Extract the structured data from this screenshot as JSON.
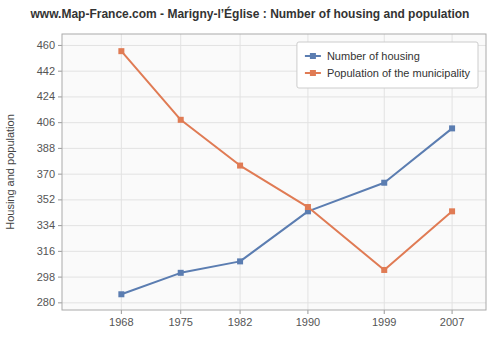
{
  "chart_data": {
    "type": "line",
    "title": "www.Map-France.com - Marigny-l’Église : Number of housing and population",
    "y_label": "Housing and population",
    "x": [
      1968,
      1975,
      1982,
      1990,
      1999,
      2007
    ],
    "xlim": [
      1961,
      2011
    ],
    "xticks": [
      1968,
      1975,
      1982,
      1990,
      1999,
      2007
    ],
    "ylim": [
      275,
      468
    ],
    "yticks": [
      280,
      298,
      316,
      334,
      352,
      370,
      388,
      406,
      424,
      442,
      460
    ],
    "series": [
      {
        "name": "Number of housing",
        "color": "#5b7db1",
        "values": [
          286,
          301,
          309,
          344,
          364,
          402
        ]
      },
      {
        "name": "Population of the municipality",
        "color": "#e07b54",
        "values": [
          456,
          408,
          376,
          347,
          303,
          344
        ]
      }
    ],
    "marker": "square",
    "grid": true,
    "legend": "upper right"
  }
}
